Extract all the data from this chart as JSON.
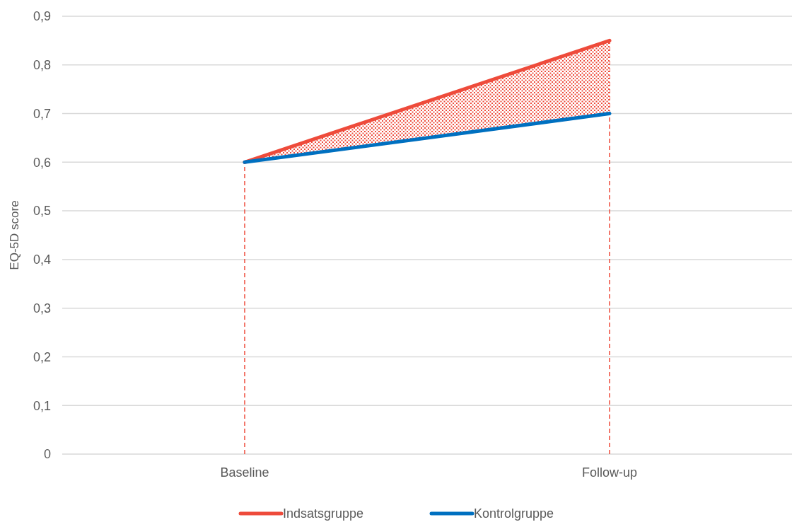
{
  "chart_data": {
    "type": "line",
    "ylabel": "EQ-5D score",
    "categories": [
      "Baseline",
      "Follow-up"
    ],
    "series": [
      {
        "name": "Indsatsgruppe",
        "color": "#ee4b3b",
        "values": [
          0.6,
          0.85
        ],
        "lower": [
          0.6,
          0.7
        ],
        "upper": [
          0.6,
          0.85
        ]
      },
      {
        "name": "Kontrolgruppe",
        "color": "#0070c0",
        "values": [
          0.6,
          0.7
        ]
      }
    ],
    "ylim": [
      0,
      0.9
    ],
    "yticks": [
      {
        "value": 0,
        "label": "0"
      },
      {
        "value": 0.1,
        "label": "0,1"
      },
      {
        "value": 0.2,
        "label": "0,2"
      },
      {
        "value": 0.3,
        "label": "0,3"
      },
      {
        "value": 0.4,
        "label": "0,4"
      },
      {
        "value": 0.5,
        "label": "0,5"
      },
      {
        "value": 0.6,
        "label": "0,6"
      },
      {
        "value": 0.7,
        "label": "0,7"
      },
      {
        "value": 0.8,
        "label": "0,8"
      },
      {
        "value": 0.9,
        "label": "0,9"
      }
    ],
    "ref_lines": [
      {
        "axis": "x",
        "value": "Baseline",
        "color": "#ee4b3b",
        "line_style": "dashed"
      },
      {
        "axis": "x",
        "value": "Follow-up",
        "color": "#ee4b3b",
        "line_style": "dashed"
      }
    ],
    "grid": "y",
    "legend": "bottom",
    "marker": "none",
    "line_style": "solid"
  }
}
